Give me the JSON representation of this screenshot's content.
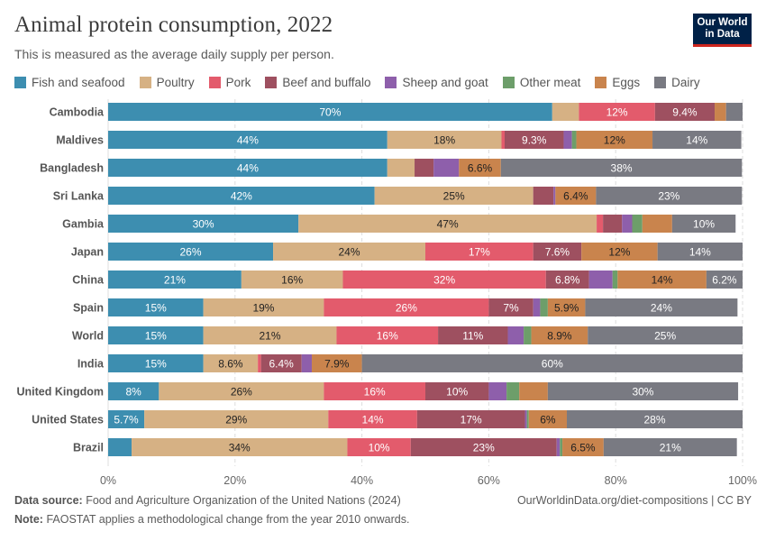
{
  "header": {
    "title": "Animal protein consumption, 2022",
    "subtitle": "This is measured as the average daily supply per person."
  },
  "logo": {
    "line1": "Our World",
    "line2": "in Data"
  },
  "footer": {
    "source_label": "Data source:",
    "source_text": "Food and Agriculture Organization of the United Nations (2024)",
    "link": "OurWorldinData.org/diet-compositions | CC BY",
    "note_label": "Note:",
    "note_text": "FAOSTAT applies a methodological change from the year 2010 onwards."
  },
  "chart_data": {
    "type": "bar",
    "orientation": "horizontal",
    "stacked": true,
    "title": "Animal protein consumption, 2022",
    "xlim": [
      0,
      100
    ],
    "x_ticks": [
      "0%",
      "20%",
      "40%",
      "60%",
      "80%",
      "100%"
    ],
    "x_tick_values": [
      0,
      20,
      40,
      60,
      80,
      100
    ],
    "grid": true,
    "legend_position": "top",
    "categories": [
      "Cambodia",
      "Maldives",
      "Bangladesh",
      "Sri Lanka",
      "Gambia",
      "Japan",
      "China",
      "Spain",
      "World",
      "India",
      "United Kingdom",
      "United States",
      "Brazil"
    ],
    "series": [
      {
        "name": "Fish and seafood",
        "color": "#3d8eb0",
        "text_color": "#ffffff",
        "values": [
          70,
          44,
          44,
          42,
          30,
          26,
          21,
          15,
          15,
          15,
          8,
          5.7,
          3.7
        ],
        "labels": [
          "70%",
          "44%",
          "44%",
          "42%",
          "30%",
          "26%",
          "21%",
          "15%",
          "15%",
          "15%",
          "8%",
          "5.7%",
          ""
        ]
      },
      {
        "name": "Poultry",
        "color": "#d6b184",
        "text_color": "#222222",
        "values": [
          4.2,
          18,
          4.3,
          25,
          47,
          24,
          16,
          19,
          21,
          8.6,
          26,
          29,
          34
        ],
        "labels": [
          "",
          "18%",
          "",
          "25%",
          "47%",
          "24%",
          "16%",
          "19%",
          "21%",
          "8.6%",
          "26%",
          "29%",
          "34%"
        ]
      },
      {
        "name": "Pork",
        "color": "#e35b6c",
        "text_color": "#ffffff",
        "values": [
          12,
          0.5,
          0,
          0,
          1,
          17,
          32,
          26,
          16,
          0.5,
          16,
          14,
          10
        ],
        "labels": [
          "12%",
          "",
          "",
          "",
          "",
          "17%",
          "32%",
          "26%",
          "16%",
          "",
          "16%",
          "14%",
          "10%"
        ]
      },
      {
        "name": "Beef and buffalo",
        "color": "#9e5060",
        "text_color": "#ffffff",
        "values": [
          9.4,
          9.3,
          3,
          3.2,
          3,
          7.6,
          6.8,
          7,
          11,
          6.4,
          10,
          17,
          23
        ],
        "labels": [
          "9.4%",
          "9.3%",
          "",
          "",
          "",
          "7.6%",
          "6.8%",
          "7%",
          "11%",
          "6.4%",
          "10%",
          "17%",
          "23%"
        ]
      },
      {
        "name": "Sheep and goat",
        "color": "#8e5fab",
        "text_color": "#ffffff",
        "values": [
          0,
          1.3,
          4,
          0.3,
          1.6,
          0,
          3.7,
          1.1,
          2.5,
          1.6,
          2.8,
          0.3,
          0.5
        ],
        "labels": [
          "",
          "",
          "",
          "",
          "",
          "",
          "",
          "",
          "",
          "",
          "",
          "",
          ""
        ]
      },
      {
        "name": "Other meat",
        "color": "#6d9e6a",
        "text_color": "#ffffff",
        "values": [
          0,
          0.7,
          0,
          0,
          1.6,
          0,
          0.8,
          1.2,
          1.2,
          0,
          2,
          0.3,
          0.4
        ],
        "labels": [
          "",
          "",
          "",
          "",
          "",
          "",
          "",
          "",
          "",
          "",
          "",
          "",
          ""
        ]
      },
      {
        "name": "Eggs",
        "color": "#c9844d",
        "text_color": "#222222",
        "values": [
          1.8,
          12,
          6.6,
          6.4,
          4.7,
          12,
          14,
          5.9,
          8.9,
          7.9,
          4.5,
          6,
          6.5
        ],
        "labels": [
          "",
          "12%",
          "6.6%",
          "6.4%",
          "",
          "12%",
          "14%",
          "5.9%",
          "8.9%",
          "7.9%",
          "",
          "6%",
          "6.5%"
        ]
      },
      {
        "name": "Dairy",
        "color": "#797a82",
        "text_color": "#ffffff",
        "values": [
          3.2,
          14,
          38,
          23,
          10,
          14,
          6.2,
          24,
          25,
          60,
          30,
          28,
          21
        ],
        "labels": [
          "",
          "14%",
          "38%",
          "23%",
          "10%",
          "14%",
          "6.2%",
          "24%",
          "25%",
          "60%",
          "30%",
          "28%",
          "21%"
        ]
      }
    ]
  }
}
